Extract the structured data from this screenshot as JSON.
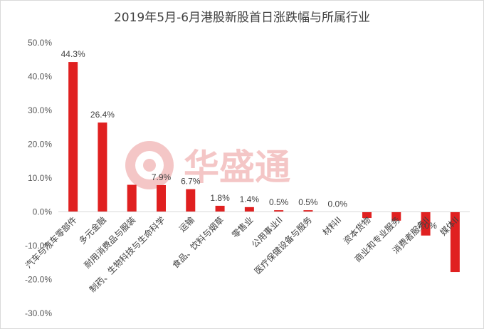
{
  "chart_data": {
    "type": "bar",
    "title": "2019年5月-6月港股新股首日涨跌幅与所属行业",
    "xlabel": "",
    "ylabel": "",
    "ylim": [
      -30,
      50
    ],
    "yticks": [
      50,
      40,
      30,
      20,
      10,
      0,
      -10,
      -20,
      -30
    ],
    "ytick_labels": [
      "50.0%",
      "40.0%",
      "30.0%",
      "20.0%",
      "10.0%",
      "0.0%",
      "-10.0%",
      "-20.0%",
      "-30.0%"
    ],
    "grid": false,
    "legend": "none",
    "bar_color": "#e02020",
    "categories": [
      "汽车与汽车零部件",
      "多元金融",
      "耐用消费品与服装",
      "制药、生物科技与生命科学",
      "运输",
      "食品、饮料与烟草",
      "零售业",
      "公用事业II",
      "医疗保健设备与服务",
      "材料II",
      "资本货物",
      "商业和专业服务",
      "消费者服务II",
      "媒体II"
    ],
    "values": [
      44.3,
      26.4,
      8.0,
      7.9,
      6.7,
      1.8,
      1.4,
      0.5,
      0.5,
      0.0,
      -1.8,
      -2.6,
      -7.0,
      -17.8
    ],
    "data_labels": [
      "44.3%",
      "26.4%",
      "",
      "7.9%",
      "6.7%",
      "1.8%",
      "1.4%",
      "0.5%",
      "0.5%",
      "0.0%",
      "",
      "",
      "-7.0%",
      ""
    ]
  },
  "watermark": {
    "text": "华盛通",
    "color": "#f4c6c6"
  }
}
